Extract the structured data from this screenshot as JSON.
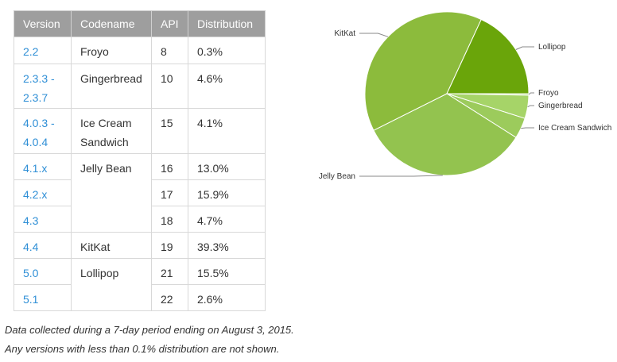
{
  "table": {
    "headers": [
      "Version",
      "Codename",
      "API",
      "Distribution"
    ],
    "rows": [
      {
        "version": "2.2",
        "codename": "Froyo",
        "api": "8",
        "distribution": "0.3%"
      },
      {
        "version": "2.3.3 - 2.3.7",
        "codename": "Gingerbread",
        "api": "10",
        "distribution": "4.6%"
      },
      {
        "version": "4.0.3 - 4.0.4",
        "codename": "Ice Cream Sandwich",
        "api": "15",
        "distribution": "4.1%"
      },
      {
        "version": "4.1.x",
        "codename": "Jelly Bean",
        "api": "16",
        "distribution": "13.0%"
      },
      {
        "version": "4.2.x",
        "codename": "",
        "api": "17",
        "distribution": "15.9%"
      },
      {
        "version": "4.3",
        "codename": "",
        "api": "18",
        "distribution": "4.7%"
      },
      {
        "version": "4.4",
        "codename": "KitKat",
        "api": "19",
        "distribution": "39.3%"
      },
      {
        "version": "5.0",
        "codename": "Lollipop",
        "api": "21",
        "distribution": "15.5%"
      },
      {
        "version": "5.1",
        "codename": "",
        "api": "22",
        "distribution": "2.6%"
      }
    ]
  },
  "chart_data": {
    "type": "pie",
    "slices": [
      {
        "label": "Froyo",
        "value": 0.3,
        "color": "#b6dd8a"
      },
      {
        "label": "Gingerbread",
        "value": 4.6,
        "color": "#a6d468"
      },
      {
        "label": "Ice Cream Sandwich",
        "value": 4.1,
        "color": "#9ccb5c"
      },
      {
        "label": "Jelly Bean",
        "value": 33.6,
        "color": "#93c34f"
      },
      {
        "label": "KitKat",
        "value": 39.3,
        "color": "#8cbb3c"
      },
      {
        "label": "Lollipop",
        "value": 18.1,
        "color": "#6aa50a"
      }
    ],
    "legend": "callout-labels",
    "direction": "clockwise from 3 o'clock"
  },
  "footnotes": [
    "Data collected during a 7-day period ending on August 3, 2015.",
    "Any versions with less than 0.1% distribution are not shown."
  ]
}
